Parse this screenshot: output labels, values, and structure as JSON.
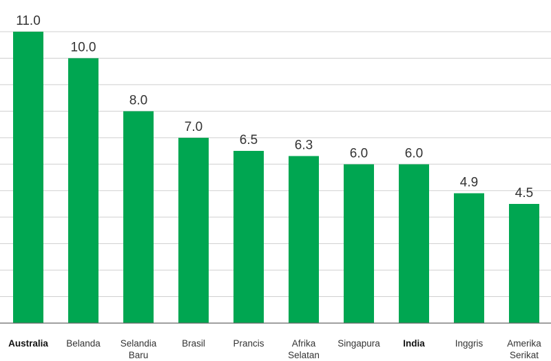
{
  "chart_data": {
    "type": "bar",
    "categories": [
      "Australia",
      "Belanda",
      "Selandia Baru",
      "Brasil",
      "Prancis",
      "Afrika Selatan",
      "Singapura",
      "India",
      "Inggris",
      "Amerika Serikat"
    ],
    "category_lines": [
      [
        "Australia"
      ],
      [
        "Belanda"
      ],
      [
        "Selandia",
        "Baru"
      ],
      [
        "Brasil"
      ],
      [
        "Prancis"
      ],
      [
        "Afrika",
        "Selatan"
      ],
      [
        "Singapura"
      ],
      [
        "India"
      ],
      [
        "Inggris"
      ],
      [
        "Amerika",
        "Serikat"
      ]
    ],
    "values": [
      11.0,
      10.0,
      8.0,
      7.0,
      6.5,
      6.3,
      6.0,
      6.0,
      4.9,
      4.5
    ],
    "value_labels": [
      "11.0",
      "10.0",
      "8.0",
      "7.0",
      "6.5",
      "6.3",
      "6.0",
      "6.0",
      "4.9",
      "4.5"
    ],
    "bold_categories": [
      "Australia",
      "India"
    ],
    "bar_color": "#00a651",
    "ylim": [
      0,
      11
    ],
    "grid": true,
    "title": "",
    "xlabel": "",
    "ylabel": ""
  }
}
